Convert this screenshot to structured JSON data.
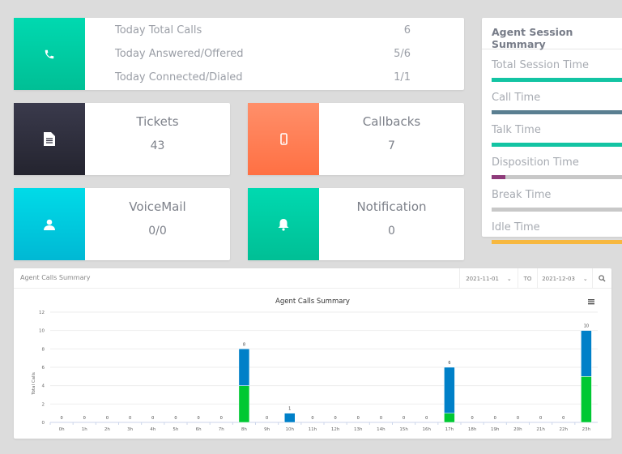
{
  "calls_card": {
    "icon": "phone-icon",
    "color": "#00c9a0",
    "rows": [
      {
        "label": "Today Total Calls",
        "value": "6"
      },
      {
        "label": "Today Answered/Offered",
        "value": "5/6"
      },
      {
        "label": "Today Connected/Dialed",
        "value": "1/1"
      }
    ]
  },
  "tiles": [
    {
      "title": "Tickets",
      "value": "43",
      "icon": "document-icon",
      "color": "#2e2e3e"
    },
    {
      "title": "Callbacks",
      "value": "7",
      "icon": "mobile-phone-icon",
      "color": "#ff7f56"
    },
    {
      "title": "VoiceMail",
      "value": "0/0",
      "icon": "user-icon",
      "color": "#00c6e0"
    },
    {
      "title": "Notification",
      "value": "0",
      "icon": "bell-icon",
      "color": "#00c9a0"
    }
  ],
  "session": {
    "title": "Agent Session Summary",
    "items": [
      {
        "label": "Total Session Time",
        "fill": 100,
        "color": "#13c4a3"
      },
      {
        "label": "Call Time",
        "fill": 100,
        "color": "#5a7f91"
      },
      {
        "label": "Talk Time",
        "fill": 100,
        "color": "#13c4a3"
      },
      {
        "label": "Disposition Time",
        "fill": 10,
        "color": "#8e3b7a"
      },
      {
        "label": "Break Time",
        "fill": 0,
        "color": "#c8c8c8"
      },
      {
        "label": "Idle Time",
        "fill": 100,
        "color": "#f7b840"
      }
    ]
  },
  "panel": {
    "title": "Agent Calls Summary",
    "from": "2021-11-01",
    "to_label": "TO",
    "to": "2021-12-03"
  },
  "chart_data": {
    "type": "bar",
    "stacked": true,
    "title": "Agent Calls Summary",
    "ylabel": "Total Calls",
    "xlabel": "",
    "ylim": [
      0,
      12
    ],
    "yticks": [
      0,
      2,
      4,
      6,
      8,
      10,
      12
    ],
    "grid": true,
    "categories": [
      "0h",
      "1h",
      "2h",
      "3h",
      "4h",
      "5h",
      "6h",
      "7h",
      "8h",
      "9h",
      "10h",
      "11h",
      "12h",
      "13h",
      "14h",
      "15h",
      "16h",
      "17h",
      "18h",
      "19h",
      "20h",
      "21h",
      "22h",
      "23h"
    ],
    "series": [
      {
        "values": [
          0,
          0,
          0,
          0,
          0,
          0,
          0,
          0,
          4,
          0,
          0,
          0,
          0,
          0,
          0,
          0,
          0,
          1,
          0,
          0,
          0,
          0,
          0,
          5
        ],
        "color": "#00c832"
      },
      {
        "values": [
          0,
          0,
          0,
          0,
          0,
          0,
          0,
          0,
          4,
          0,
          1,
          0,
          0,
          0,
          0,
          0,
          0,
          5,
          0,
          0,
          0,
          0,
          0,
          5
        ],
        "color": "#0080c8"
      }
    ],
    "totals": [
      0,
      0,
      0,
      0,
      0,
      0,
      0,
      0,
      8,
      0,
      1,
      0,
      0,
      0,
      0,
      0,
      0,
      6,
      0,
      0,
      0,
      0,
      0,
      10
    ]
  }
}
